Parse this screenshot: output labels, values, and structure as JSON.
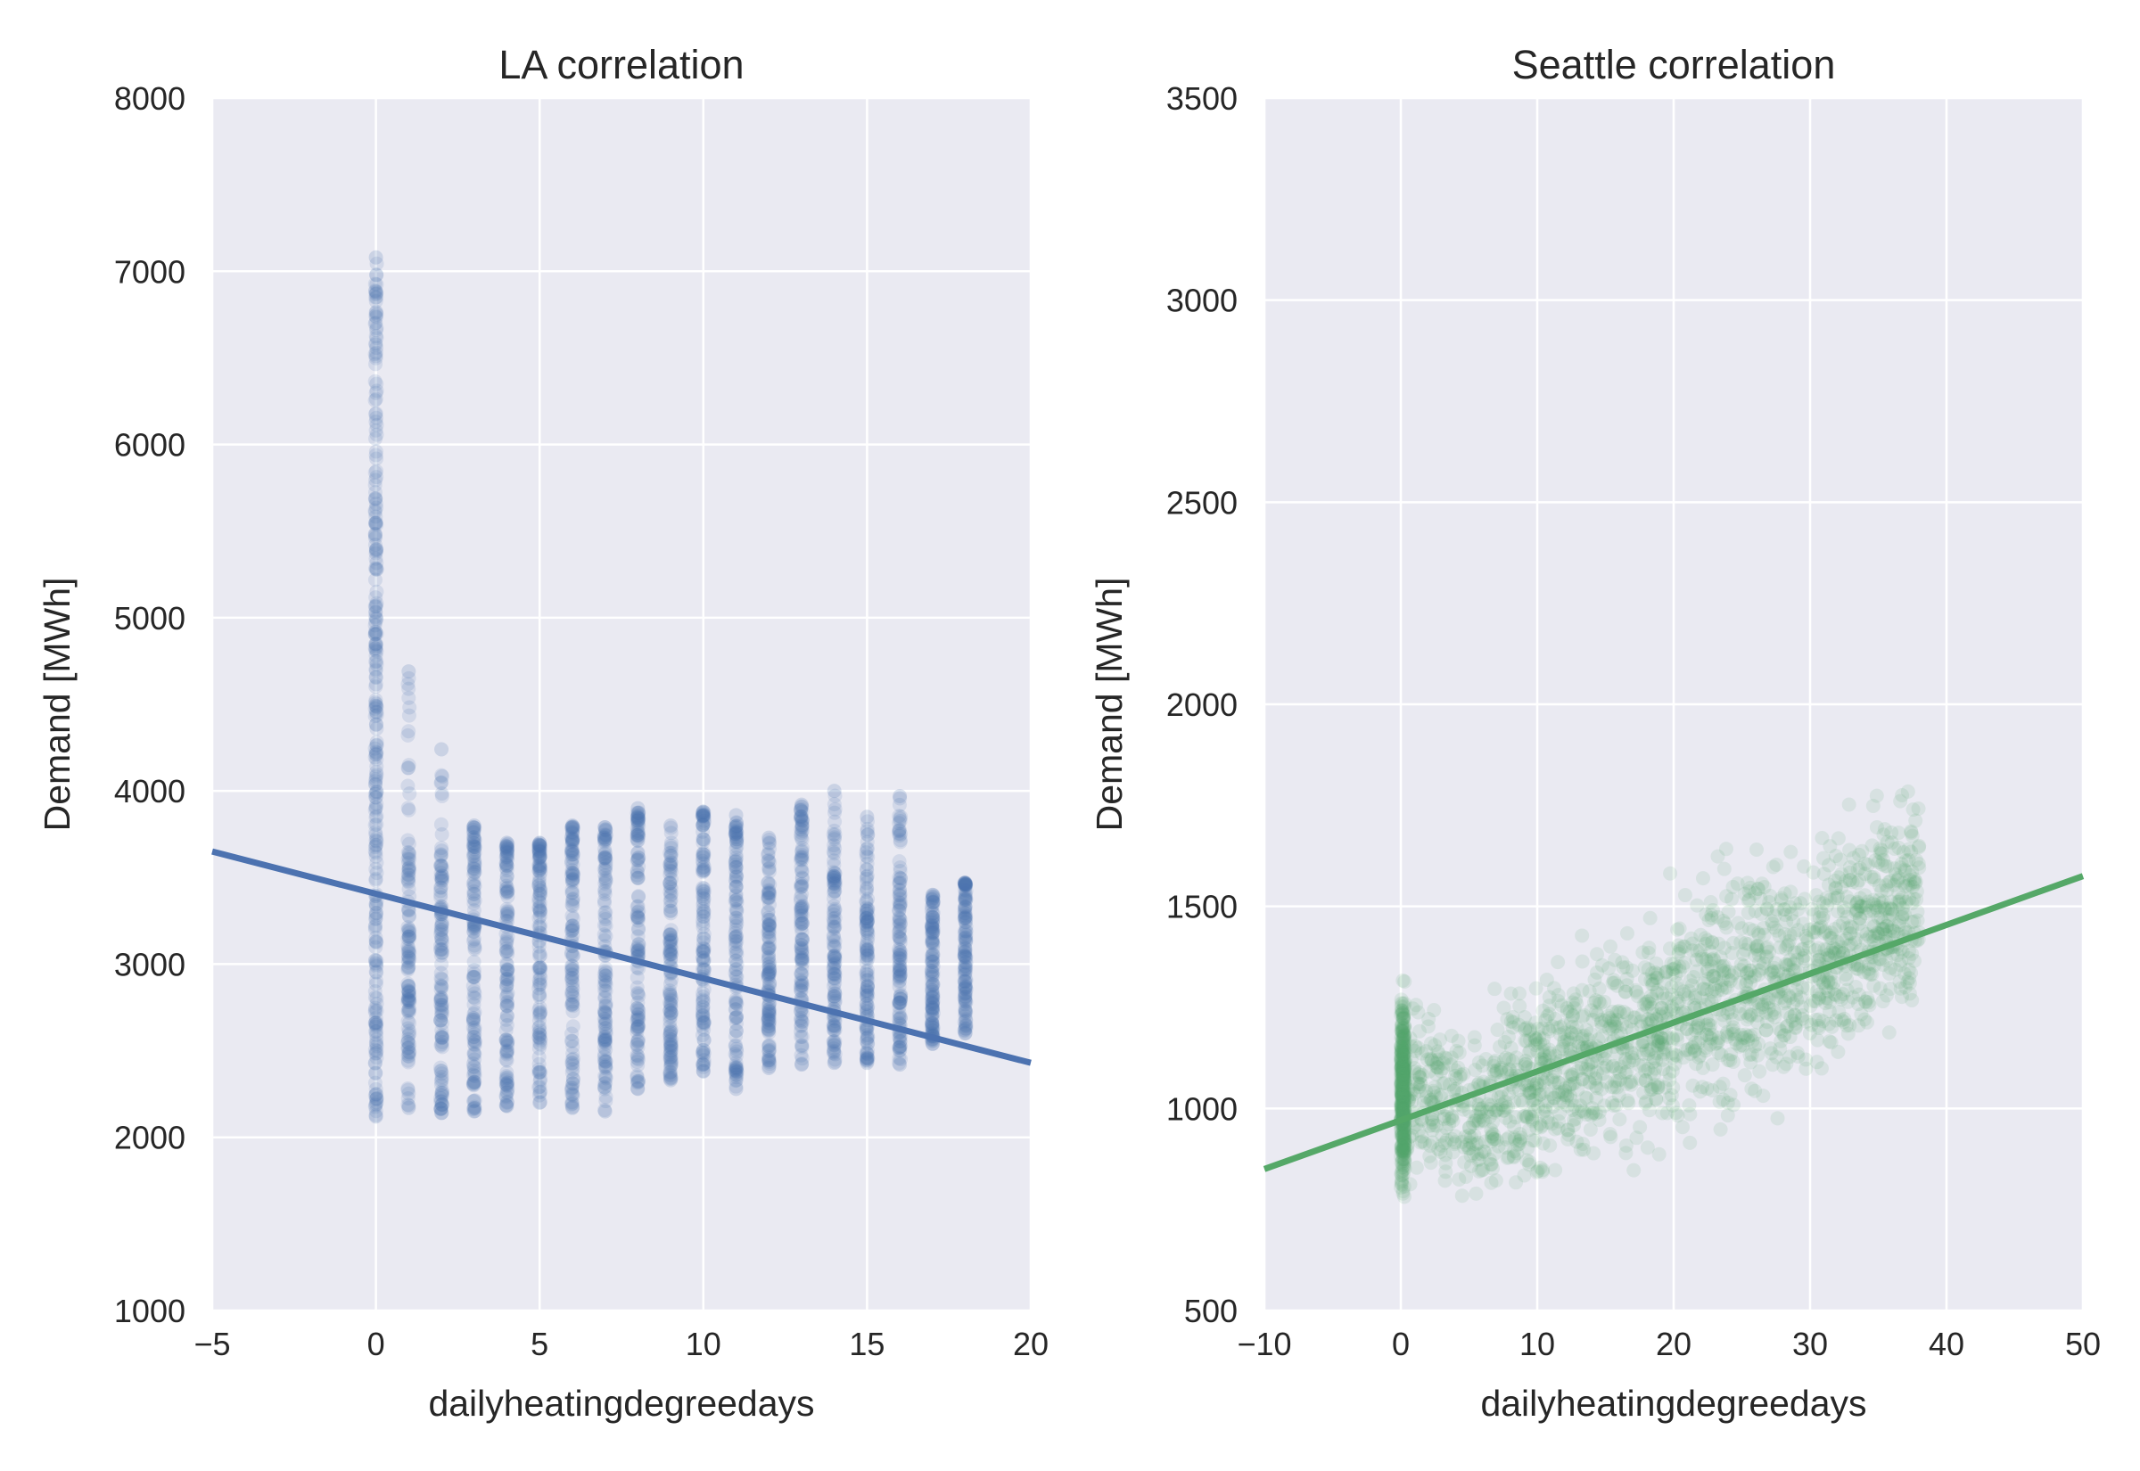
{
  "chart_data": [
    {
      "type": "scatter",
      "title": "LA correlation",
      "xlabel": "dailyheatingdegreedays",
      "ylabel": "Demand [MWh]",
      "xlim": [
        -5,
        20
      ],
      "ylim": [
        1000,
        8000
      ],
      "xticks": [
        "−5",
        "0",
        "5",
        "10",
        "15",
        "20"
      ],
      "xtick_values": [
        -5,
        0,
        5,
        10,
        15,
        20
      ],
      "yticks": [
        "1000",
        "2000",
        "3000",
        "4000",
        "5000",
        "6000",
        "7000",
        "8000"
      ],
      "ytick_values": [
        1000,
        2000,
        3000,
        4000,
        5000,
        6000,
        7000,
        8000
      ],
      "grid": true,
      "color": "#4c72b0",
      "series": [
        {
          "values_by_x": [
            {
              "x": 0,
              "min": 2120,
              "max": 7080,
              "dense_max": 6100
            },
            {
              "x": 1,
              "min": 2170,
              "max": 4690,
              "dense_max": 3700
            },
            {
              "x": 2,
              "min": 2140,
              "max": 4240,
              "dense_max": 3650
            },
            {
              "x": 3,
              "min": 2150,
              "max": 3800,
              "dense_max": 3620
            },
            {
              "x": 4,
              "min": 2180,
              "max": 3700,
              "dense_max": 3640
            },
            {
              "x": 5,
              "min": 2200,
              "max": 3700,
              "dense_max": 3600
            },
            {
              "x": 6,
              "min": 2170,
              "max": 3800,
              "dense_max": 3700
            },
            {
              "x": 7,
              "min": 2150,
              "max": 3790,
              "dense_max": 3700
            },
            {
              "x": 8,
              "min": 2280,
              "max": 3900,
              "dense_max": 3750
            },
            {
              "x": 9,
              "min": 2330,
              "max": 3800,
              "dense_max": 3550
            },
            {
              "x": 10,
              "min": 2380,
              "max": 3880,
              "dense_max": 3800
            },
            {
              "x": 11,
              "min": 2280,
              "max": 3860,
              "dense_max": 3700
            },
            {
              "x": 12,
              "min": 2400,
              "max": 3730,
              "dense_max": 3450
            },
            {
              "x": 13,
              "min": 2420,
              "max": 3920,
              "dense_max": 3750
            },
            {
              "x": 14,
              "min": 2430,
              "max": 4000,
              "dense_max": 3550
            },
            {
              "x": 15,
              "min": 2430,
              "max": 3850,
              "dense_max": 3300
            },
            {
              "x": 16,
              "min": 2420,
              "max": 3970,
              "dense_max": 3550
            },
            {
              "x": 17,
              "min": 2540,
              "max": 3400,
              "dense_max": 3350
            },
            {
              "x": 18,
              "min": 2600,
              "max": 3470,
              "dense_max": 3450
            }
          ]
        }
      ],
      "regression": {
        "x": [
          -5,
          20
        ],
        "y": [
          3650,
          2430
        ]
      }
    },
    {
      "type": "scatter",
      "title": "Seattle correlation",
      "xlabel": "dailyheatingdegreedays",
      "ylabel": "Demand [MWh]",
      "xlim": [
        -10,
        50
      ],
      "ylim": [
        500,
        3500
      ],
      "xticks": [
        "−10",
        "0",
        "10",
        "20",
        "30",
        "40",
        "50"
      ],
      "xtick_values": [
        -10,
        0,
        10,
        20,
        30,
        40,
        50
      ],
      "yticks": [
        "500",
        "1000",
        "1500",
        "2000",
        "2500",
        "3000",
        "3500"
      ],
      "ytick_values": [
        500,
        1000,
        1500,
        2000,
        2500,
        3000,
        3500
      ],
      "grid": true,
      "color": "#55a868",
      "series": [
        {
          "envelope": [
            {
              "x": 0,
              "low": 720,
              "high": 1370
            },
            {
              "x": 5,
              "low": 710,
              "high": 1250
            },
            {
              "x": 10,
              "low": 730,
              "high": 1400
            },
            {
              "x": 15,
              "low": 780,
              "high": 1500
            },
            {
              "x": 20,
              "low": 850,
              "high": 1600
            },
            {
              "x": 25,
              "low": 900,
              "high": 1750
            },
            {
              "x": 30,
              "low": 1000,
              "high": 1700
            },
            {
              "x": 34,
              "low": 1100,
              "high": 1800
            },
            {
              "x": 38,
              "low": 1200,
              "high": 1870
            }
          ]
        }
      ],
      "regression": {
        "x": [
          -10,
          50
        ],
        "y": [
          850,
          1575
        ]
      }
    }
  ]
}
